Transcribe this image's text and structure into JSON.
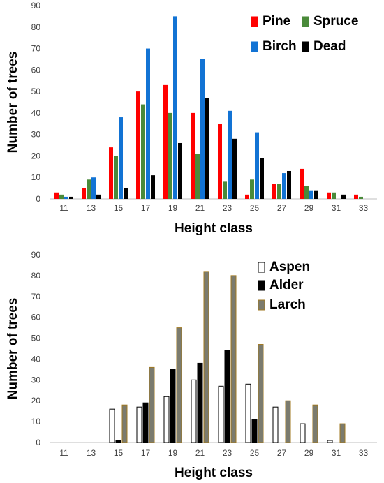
{
  "chart_data": [
    {
      "type": "bar",
      "title": "",
      "xlabel": "Height class",
      "ylabel": "Number of trees",
      "ylim": [
        0,
        90
      ],
      "yticks": [
        "0",
        "10",
        "20",
        "30",
        "40",
        "50",
        "60",
        "70",
        "80",
        "90"
      ],
      "categories": [
        "11",
        "13",
        "15",
        "17",
        "19",
        "21",
        "23",
        "25",
        "27",
        "29",
        "31",
        "33"
      ],
      "grid": false,
      "legend_position": "top-right",
      "series": [
        {
          "name": "Pine",
          "color": "#ff0000",
          "values": [
            3,
            5,
            24,
            50,
            53,
            40,
            35,
            2,
            7,
            14,
            3,
            2
          ]
        },
        {
          "name": "Spruce",
          "color": "#4a8a3a",
          "values": [
            2,
            9,
            20,
            44,
            40,
            21,
            8,
            9,
            7,
            6,
            3,
            1
          ]
        },
        {
          "name": "Birch",
          "color": "#1273d4",
          "values": [
            1,
            10,
            38,
            70,
            85,
            65,
            41,
            31,
            12,
            4,
            0,
            0
          ]
        },
        {
          "name": "Dead",
          "color": "#000000",
          "values": [
            1,
            2,
            5,
            11,
            26,
            47,
            28,
            19,
            13,
            4,
            2,
            0
          ]
        }
      ]
    },
    {
      "type": "bar",
      "title": "",
      "xlabel": "Height class",
      "ylabel": "Number of trees",
      "ylim": [
        0,
        90
      ],
      "yticks": [
        "0",
        "10",
        "20",
        "30",
        "40",
        "50",
        "60",
        "70",
        "80",
        "90"
      ],
      "categories": [
        "11",
        "13",
        "15",
        "17",
        "19",
        "21",
        "23",
        "25",
        "27",
        "29",
        "31",
        "33"
      ],
      "grid": false,
      "legend_position": "top-right",
      "series": [
        {
          "name": "Aspen",
          "color": "#ffffff",
          "stroke": "#000000",
          "values": [
            0,
            0,
            16,
            17,
            22,
            30,
            27,
            28,
            17,
            9,
            1,
            0
          ]
        },
        {
          "name": "Alder",
          "color": "#000000",
          "stroke": "#000000",
          "values": [
            0,
            0,
            1,
            19,
            35,
            38,
            44,
            11,
            0,
            0,
            0,
            0
          ]
        },
        {
          "name": "Larch",
          "color": "#7b7b6e",
          "stroke": "#a07820",
          "values": [
            0,
            0,
            18,
            36,
            55,
            82,
            80,
            47,
            20,
            18,
            9,
            0
          ]
        }
      ]
    }
  ]
}
